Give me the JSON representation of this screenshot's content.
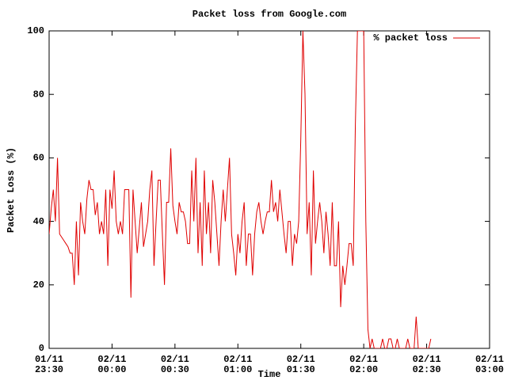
{
  "chart_data": {
    "type": "line",
    "title": "Packet loss from Google.com",
    "xlabel": "Time",
    "ylabel": "Packet Loss (%)",
    "x": [
      "01/11 23:30",
      "01/11 23:31",
      "01/11 23:32",
      "01/11 23:33",
      "01/11 23:34",
      "01/11 23:35",
      "01/11 23:36",
      "01/11 23:37",
      "01/11 23:38",
      "01/11 23:39",
      "01/11 23:40",
      "01/11 23:41",
      "01/11 23:42",
      "01/11 23:43",
      "01/11 23:44",
      "01/11 23:45",
      "01/11 23:46",
      "01/11 23:47",
      "01/11 23:48",
      "01/11 23:49",
      "01/11 23:50",
      "01/11 23:51",
      "01/11 23:52",
      "01/11 23:53",
      "01/11 23:54",
      "01/11 23:55",
      "01/11 23:56",
      "01/11 23:57",
      "01/11 23:58",
      "01/11 23:59",
      "02/11 00:00",
      "02/11 00:01",
      "02/11 00:02",
      "02/11 00:03",
      "02/11 00:04",
      "02/11 00:05",
      "02/11 00:06",
      "02/11 00:07",
      "02/11 00:08",
      "02/11 00:09",
      "02/11 00:10",
      "02/11 00:11",
      "02/11 00:12",
      "02/11 00:13",
      "02/11 00:14",
      "02/11 00:15",
      "02/11 00:16",
      "02/11 00:17",
      "02/11 00:18",
      "02/11 00:19",
      "02/11 00:20",
      "02/11 00:21",
      "02/11 00:22",
      "02/11 00:23",
      "02/11 00:24",
      "02/11 00:25",
      "02/11 00:26",
      "02/11 00:27",
      "02/11 00:28",
      "02/11 00:29",
      "02/11 00:30",
      "02/11 00:31",
      "02/11 00:32",
      "02/11 00:33",
      "02/11 00:34",
      "02/11 00:35",
      "02/11 00:36",
      "02/11 00:37",
      "02/11 00:38",
      "02/11 00:39",
      "02/11 00:40",
      "02/11 00:41",
      "02/11 00:42",
      "02/11 00:43",
      "02/11 00:44",
      "02/11 00:45",
      "02/11 00:46",
      "02/11 00:47",
      "02/11 00:48",
      "02/11 00:49",
      "02/11 00:50",
      "02/11 00:51",
      "02/11 00:52",
      "02/11 00:53",
      "02/11 00:54",
      "02/11 00:55",
      "02/11 00:56",
      "02/11 00:57",
      "02/11 00:58",
      "02/11 00:59",
      "02/11 01:00",
      "02/11 01:01",
      "02/11 01:02",
      "02/11 01:03",
      "02/11 01:04",
      "02/11 01:05",
      "02/11 01:06",
      "02/11 01:07",
      "02/11 01:08",
      "02/11 01:09",
      "02/11 01:10",
      "02/11 01:11",
      "02/11 01:12",
      "02/11 01:13",
      "02/11 01:14",
      "02/11 01:15",
      "02/11 01:16",
      "02/11 01:17",
      "02/11 01:18",
      "02/11 01:19",
      "02/11 01:20",
      "02/11 01:21",
      "02/11 01:22",
      "02/11 01:23",
      "02/11 01:24",
      "02/11 01:25",
      "02/11 01:26",
      "02/11 01:27",
      "02/11 01:28",
      "02/11 01:29",
      "02/11 01:30",
      "02/11 01:31",
      "02/11 01:32",
      "02/11 01:33",
      "02/11 01:34",
      "02/11 01:35",
      "02/11 01:36",
      "02/11 01:37",
      "02/11 01:38",
      "02/11 01:39",
      "02/11 01:40",
      "02/11 01:41",
      "02/11 01:42",
      "02/11 01:43",
      "02/11 01:44",
      "02/11 01:45",
      "02/11 01:46",
      "02/11 01:47",
      "02/11 01:48",
      "02/11 01:49",
      "02/11 01:50",
      "02/11 01:51",
      "02/11 01:52",
      "02/11 01:53",
      "02/11 01:54",
      "02/11 01:55",
      "02/11 01:56",
      "02/11 01:57",
      "02/11 01:58",
      "02/11 01:59",
      "02/11 02:00",
      "02/11 02:01",
      "02/11 02:02",
      "02/11 02:03",
      "02/11 02:04",
      "02/11 02:05",
      "02/11 02:06",
      "02/11 02:07",
      "02/11 02:08",
      "02/11 02:09",
      "02/11 02:10",
      "02/11 02:11",
      "02/11 02:12",
      "02/11 02:13",
      "02/11 02:14",
      "02/11 02:15",
      "02/11 02:16",
      "02/11 02:17",
      "02/11 02:18",
      "02/11 02:19",
      "02/11 02:20",
      "02/11 02:21",
      "02/11 02:22",
      "02/11 02:23",
      "02/11 02:24",
      "02/11 02:25",
      "02/11 02:26",
      "02/11 02:27",
      "02/11 02:28",
      "02/11 02:29",
      "02/11 02:30",
      "02/11 02:31",
      "02/11 02:32"
    ],
    "series": [
      {
        "name": "% packet loss",
        "color": "#e00000",
        "values": [
          36,
          44,
          50,
          40,
          60,
          36,
          35,
          34,
          33,
          32,
          30,
          30,
          20,
          40,
          23,
          46,
          40,
          36,
          47,
          53,
          50,
          50,
          42,
          46,
          36,
          40,
          36,
          50,
          26,
          50,
          44,
          56,
          40,
          36,
          40,
          36,
          50,
          50,
          50,
          16,
          50,
          40,
          30,
          38,
          46,
          32,
          36,
          40,
          50,
          56,
          26,
          40,
          53,
          53,
          36,
          20,
          46,
          46,
          63,
          45,
          40,
          36,
          46,
          43,
          43,
          40,
          33,
          33,
          56,
          40,
          60,
          30,
          46,
          26,
          56,
          36,
          46,
          30,
          53,
          46,
          36,
          26,
          40,
          50,
          40,
          50,
          60,
          36,
          30,
          23,
          36,
          30,
          40,
          46,
          26,
          36,
          36,
          23,
          36,
          43,
          46,
          40,
          36,
          40,
          43,
          43,
          53,
          43,
          46,
          40,
          50,
          43,
          36,
          30,
          40,
          40,
          26,
          36,
          33,
          40,
          66,
          100,
          80,
          36,
          46,
          23,
          56,
          33,
          40,
          46,
          40,
          30,
          43,
          36,
          26,
          46,
          26,
          26,
          40,
          13,
          26,
          20,
          26,
          33,
          33,
          26,
          70,
          100,
          100,
          100,
          100,
          40,
          6,
          0,
          3,
          0,
          0,
          0,
          0,
          3,
          0,
          0,
          3,
          3,
          0,
          0,
          3,
          0,
          0,
          0,
          0,
          3,
          0,
          0,
          0,
          10,
          0,
          0,
          0,
          0,
          0,
          0,
          3
        ]
      }
    ],
    "xlim": [
      "01/11 23:30",
      "02/11 03:00"
    ],
    "xticks": [
      "01/11 23:30",
      "02/11 00:00",
      "02/11 00:30",
      "02/11 01:00",
      "02/11 01:30",
      "02/11 02:00",
      "02/11 02:30",
      "02/11 03:00"
    ],
    "ylim": [
      0,
      100
    ],
    "yticks": [
      0,
      20,
      40,
      60,
      80,
      100
    ],
    "legend": "top-right"
  }
}
